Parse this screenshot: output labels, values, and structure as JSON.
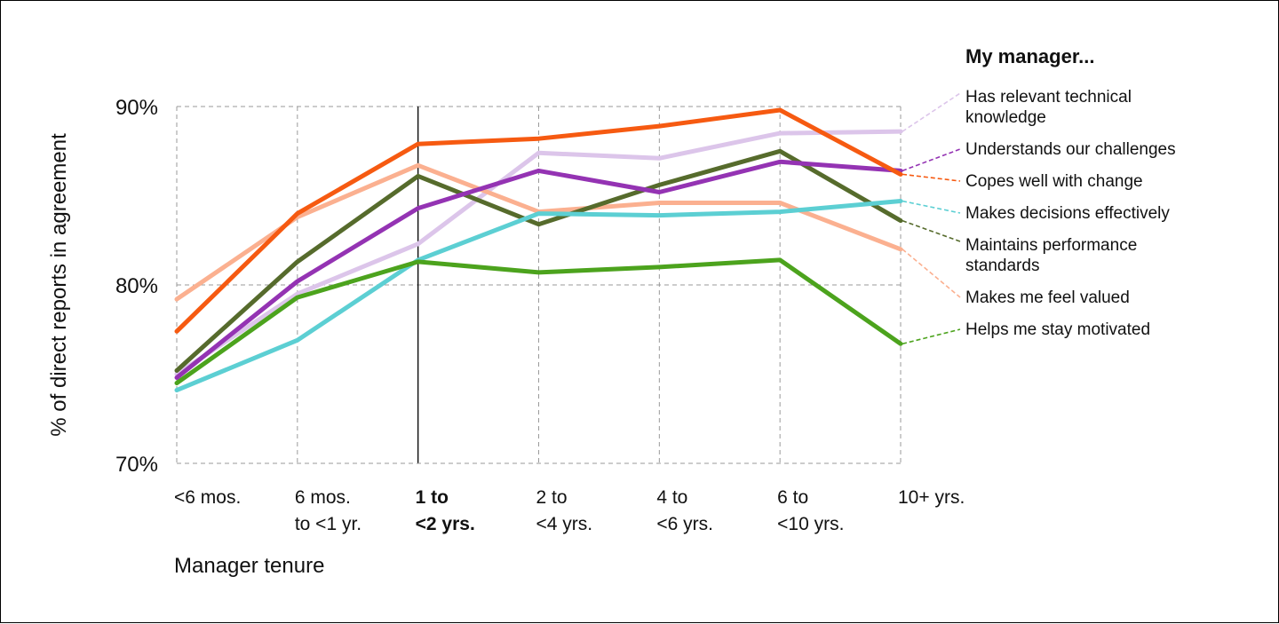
{
  "chart_data": {
    "type": "line",
    "xlabel": "Manager tenure",
    "ylabel": "% of direct reports in agreement",
    "ylim": [
      70,
      90
    ],
    "yticks": [
      {
        "value": 70,
        "label": "70%"
      },
      {
        "value": 80,
        "label": "80%"
      },
      {
        "value": 90,
        "label": "90%"
      }
    ],
    "categories": [
      {
        "lines": [
          "<6 mos."
        ],
        "bold": false
      },
      {
        "lines": [
          "6 mos.",
          "to <1 yr."
        ],
        "bold": false
      },
      {
        "lines": [
          "1 to",
          "<2 yrs."
        ],
        "bold": true
      },
      {
        "lines": [
          "2 to",
          "<4 yrs."
        ],
        "bold": false
      },
      {
        "lines": [
          "4 to",
          "<6 yrs."
        ],
        "bold": false
      },
      {
        "lines": [
          "6 to",
          "<10 yrs."
        ],
        "bold": false
      },
      {
        "lines": [
          "10+ yrs."
        ],
        "bold": false
      }
    ],
    "highlight_category": 2,
    "grid": true,
    "legend_placement": "right",
    "legend_title": "My manager...",
    "series": [
      {
        "name": "Has relevant technical knowledge",
        "label_lines": [
          "Has relevant technical",
          "knowledge"
        ],
        "color": "#dcc5ea",
        "values": [
          75.0,
          79.5,
          82.3,
          87.4,
          87.1,
          88.5,
          88.6
        ]
      },
      {
        "name": "Makes me feel valued",
        "label_lines": [
          "Makes me feel valued"
        ],
        "color": "#fbb090",
        "values": [
          79.2,
          83.8,
          86.7,
          84.1,
          84.6,
          84.6,
          82.0
        ]
      },
      {
        "name": "Maintains performance standards",
        "label_lines": [
          "Maintains performance",
          "standards"
        ],
        "color": "#566b2c",
        "values": [
          75.2,
          81.3,
          86.1,
          83.4,
          85.6,
          87.5,
          83.6
        ]
      },
      {
        "name": "Makes decisions effectively",
        "label_lines": [
          "Makes decisions effectively"
        ],
        "color": "#5ccfd3",
        "values": [
          74.1,
          76.9,
          81.4,
          84.0,
          83.9,
          84.1,
          84.7
        ]
      },
      {
        "name": "Helps me stay motivated",
        "label_lines": [
          "Helps me stay motivated"
        ],
        "color": "#4ca31d",
        "values": [
          74.5,
          79.3,
          81.3,
          80.7,
          81.0,
          81.4,
          76.7
        ]
      },
      {
        "name": "Understands our challenges",
        "label_lines": [
          "Understands our challenges"
        ],
        "color": "#9433b3",
        "values": [
          74.8,
          80.2,
          84.3,
          86.4,
          85.2,
          86.9,
          86.4
        ]
      },
      {
        "name": "Copes well with change",
        "label_lines": [
          "Copes well with change"
        ],
        "color": "#f65a11",
        "values": [
          77.4,
          84.0,
          87.9,
          88.2,
          88.9,
          89.8,
          86.2
        ]
      }
    ]
  }
}
